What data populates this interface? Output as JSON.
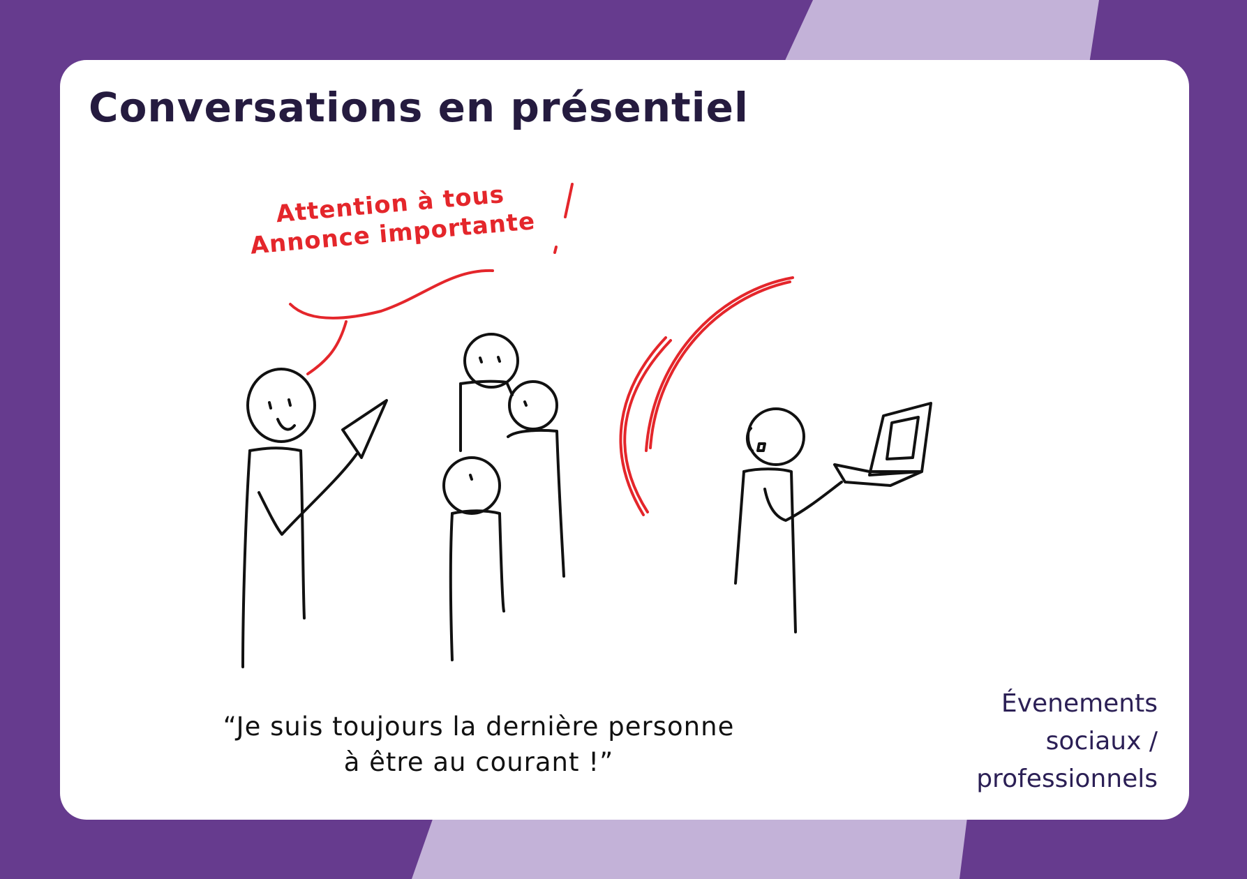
{
  "card": {
    "title": "Conversations en présentiel",
    "speech_bubble": {
      "line1": "Attention à tous",
      "line2": "Annonce importante"
    },
    "quote": {
      "line1": "“Je suis toujours la dernière personne",
      "line2": "à être au courant !”"
    },
    "category": {
      "line1": "Évenements",
      "line2": "sociaux /",
      "line3": "professionnels"
    }
  },
  "colors": {
    "background_purple": "#663b8e",
    "stripe_lilac": "#c3b2d8",
    "card": "#ffffff",
    "title": "#251b3f",
    "accent_red": "#e4262b",
    "category_text": "#2b1f55"
  }
}
